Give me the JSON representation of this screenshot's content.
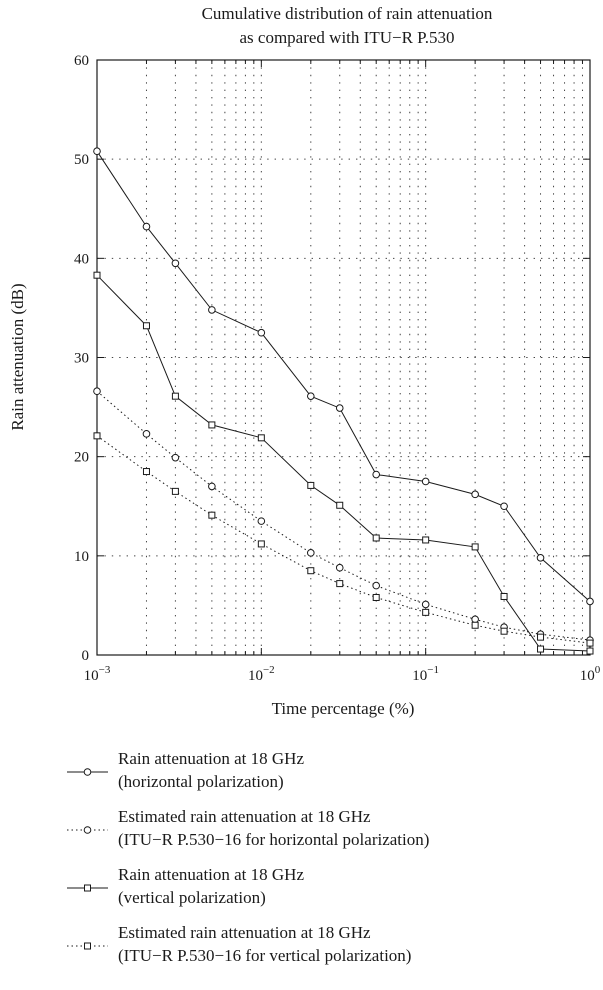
{
  "chart_data": {
    "type": "line",
    "title_lines": [
      "Cumulative distribution of rain attenuation",
      "as compared with ITU−R P.530"
    ],
    "xlabel": "Time percentage (%)",
    "ylabel": "Rain attenuation (dB)",
    "x_scale": "log",
    "xlim": [
      0.001,
      1
    ],
    "ylim": [
      0,
      60
    ],
    "y_ticks": [
      0,
      10,
      20,
      30,
      40,
      50,
      60
    ],
    "x_tick_labels": [
      {
        "value": 0.001,
        "base": "10",
        "exp": "−3"
      },
      {
        "value": 0.01,
        "base": "10",
        "exp": "−2"
      },
      {
        "value": 0.1,
        "base": "10",
        "exp": "−1"
      },
      {
        "value": 1,
        "base": "10",
        "exp": "0"
      }
    ],
    "grid": true,
    "legend_position": "below",
    "x": [
      0.001,
      0.002,
      0.003,
      0.005,
      0.01,
      0.02,
      0.03,
      0.05,
      0.1,
      0.2,
      0.3,
      0.5,
      1
    ],
    "series": [
      {
        "legend_lines": [
          "Rain attenuation at 18 GHz",
          "(horizontal polarization)"
        ],
        "marker": "circle",
        "line_style": "solid",
        "values": [
          50.8,
          43.2,
          39.5,
          34.8,
          32.5,
          26.1,
          24.9,
          18.2,
          17.5,
          16.2,
          15.0,
          9.8,
          5.4
        ]
      },
      {
        "legend_lines": [
          "Estimated rain attenuation at 18 GHz",
          "(ITU−R P.530−16 for horizontal polarization)"
        ],
        "marker": "circle",
        "line_style": "dotted",
        "values": [
          26.6,
          22.3,
          19.9,
          17.0,
          13.5,
          10.3,
          8.8,
          7.0,
          5.1,
          3.6,
          2.8,
          2.1,
          1.5
        ]
      },
      {
        "legend_lines": [
          "Rain attenuation at 18 GHz",
          "(vertical polarization)"
        ],
        "marker": "square",
        "line_style": "solid",
        "values": [
          38.3,
          33.2,
          26.1,
          23.2,
          21.9,
          17.1,
          15.1,
          11.8,
          11.6,
          10.9,
          5.9,
          0.6,
          0.4
        ]
      },
      {
        "legend_lines": [
          "Estimated rain attenuation at 18 GHz",
          "(ITU−R P.530−16 for vertical polarization)"
        ],
        "marker": "square",
        "line_style": "dotted",
        "values": [
          22.1,
          18.5,
          16.5,
          14.1,
          11.2,
          8.5,
          7.2,
          5.8,
          4.3,
          3.0,
          2.4,
          1.8,
          1.2
        ]
      }
    ]
  }
}
